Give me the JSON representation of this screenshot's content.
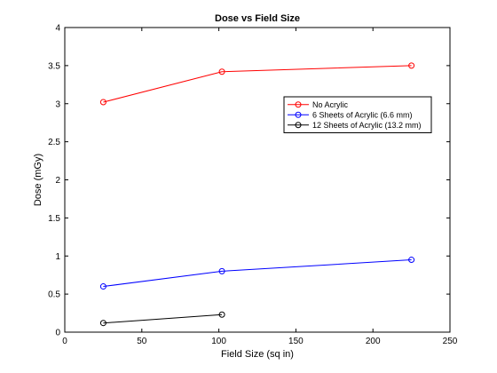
{
  "chart_data": {
    "type": "line",
    "title": "Dose vs Field Size",
    "xlabel": "Field Size (sq in)",
    "ylabel": "Dose (mGy)",
    "xlim": [
      0,
      250
    ],
    "ylim": [
      0,
      4
    ],
    "xticks": [
      0,
      50,
      100,
      150,
      200,
      250
    ],
    "yticks": [
      0,
      0.5,
      1,
      1.5,
      2,
      2.5,
      3,
      3.5,
      4
    ],
    "grid": false,
    "legend_position": "upper-right",
    "series": [
      {
        "name": "No Acrylic",
        "color": "#ff0000",
        "marker": "circle",
        "x": [
          25,
          102,
          225
        ],
        "y": [
          3.02,
          3.42,
          3.5
        ]
      },
      {
        "name": "6 Sheets of Acrylic (6.6 mm)",
        "color": "#0000ff",
        "marker": "circle",
        "x": [
          25,
          102,
          225
        ],
        "y": [
          0.6,
          0.8,
          0.95
        ]
      },
      {
        "name": "12 Sheets of Acrylic (13.2 mm)",
        "color": "#000000",
        "marker": "circle",
        "x": [
          25,
          102
        ],
        "y": [
          0.12,
          0.23
        ]
      }
    ]
  }
}
